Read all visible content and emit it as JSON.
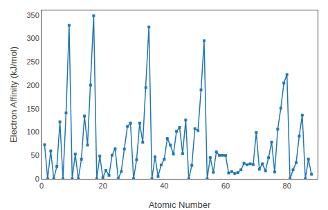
{
  "chart_data": {
    "type": "line",
    "xlabel": "Atomic Number",
    "ylabel": "Electron Affinity (kJ/mol)",
    "marker": "square",
    "grid": false,
    "xlim": [
      0,
      90
    ],
    "ylim": [
      0,
      360
    ],
    "xticks": [
      0,
      20,
      40,
      60,
      80
    ],
    "yticks": [
      0,
      50,
      100,
      150,
      200,
      250,
      300,
      350
    ],
    "x": [
      1,
      2,
      3,
      4,
      5,
      6,
      7,
      8,
      9,
      10,
      11,
      12,
      13,
      14,
      15,
      16,
      17,
      18,
      19,
      20,
      21,
      22,
      23,
      24,
      25,
      26,
      27,
      28,
      29,
      30,
      31,
      32,
      33,
      34,
      35,
      36,
      37,
      38,
      39,
      40,
      41,
      42,
      43,
      44,
      45,
      46,
      47,
      48,
      49,
      50,
      51,
      52,
      53,
      54,
      55,
      56,
      57,
      58,
      59,
      60,
      61,
      62,
      63,
      64,
      65,
      66,
      67,
      68,
      69,
      70,
      71,
      72,
      73,
      74,
      75,
      76,
      77,
      78,
      79,
      80,
      81,
      82,
      83,
      84,
      85,
      86,
      87,
      88
    ],
    "values": [
      72.8,
      0,
      59.6,
      0,
      26.7,
      121.8,
      0,
      141.0,
      328.0,
      0,
      52.8,
      0,
      41.8,
      134.1,
      72.0,
      200.4,
      348.6,
      0,
      48.4,
      2.4,
      18.0,
      7.6,
      50.6,
      64.3,
      0,
      15.7,
      63.7,
      112.0,
      119.0,
      0,
      41.0,
      119.0,
      78.0,
      195.0,
      324.6,
      0,
      46.9,
      5.0,
      29.6,
      41.8,
      86.1,
      72.0,
      53.0,
      101.3,
      109.7,
      53.7,
      125.6,
      0,
      28.9,
      107.3,
      103.2,
      190.2,
      295.2,
      0,
      45.5,
      13.9,
      57.4,
      50.1,
      50.4,
      50.0,
      12.4,
      15.6,
      11.3,
      13.2,
      19.2,
      33.0,
      30.1,
      32.0,
      30.4,
      99.0,
      20.6,
      32.0,
      17.2,
      45.2,
      78.6,
      14.5,
      106.1,
      150.9,
      205.0,
      222.8,
      0,
      19.2,
      34.4,
      91.2,
      136.0,
      0,
      42.0,
      9.7
    ]
  }
}
